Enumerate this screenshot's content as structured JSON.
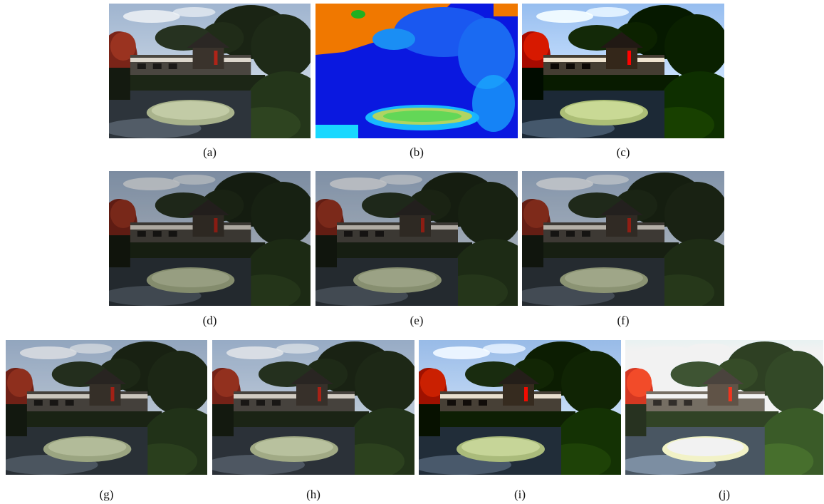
{
  "figure": {
    "panels": [
      {
        "id": "a",
        "label": "(a)",
        "variant": "original"
      },
      {
        "id": "b",
        "label": "(b)",
        "variant": "colormap"
      },
      {
        "id": "c",
        "label": "(c)",
        "variant": "enhanced-vivid"
      },
      {
        "id": "d",
        "label": "(d)",
        "variant": "dark"
      },
      {
        "id": "e",
        "label": "(e)",
        "variant": "dark"
      },
      {
        "id": "f",
        "label": "(f)",
        "variant": "dark"
      },
      {
        "id": "g",
        "label": "(g)",
        "variant": "medium"
      },
      {
        "id": "h",
        "label": "(h)",
        "variant": "medium"
      },
      {
        "id": "i",
        "label": "(i)",
        "variant": "enhanced-vivid"
      },
      {
        "id": "j",
        "label": "(j)",
        "variant": "bright"
      }
    ]
  },
  "palette": {
    "background": "#ffffff",
    "sky": "#c9d6e6",
    "foliage": "#1f2a17",
    "maple": "#8a2a1c",
    "water": "#2a3138",
    "lily": "#b8c29a",
    "colormap_blue": "#0a18e0",
    "colormap_orange": "#f07800",
    "colormap_cyan": "#18d8ff",
    "colormap_yellow": "#f0e020"
  }
}
